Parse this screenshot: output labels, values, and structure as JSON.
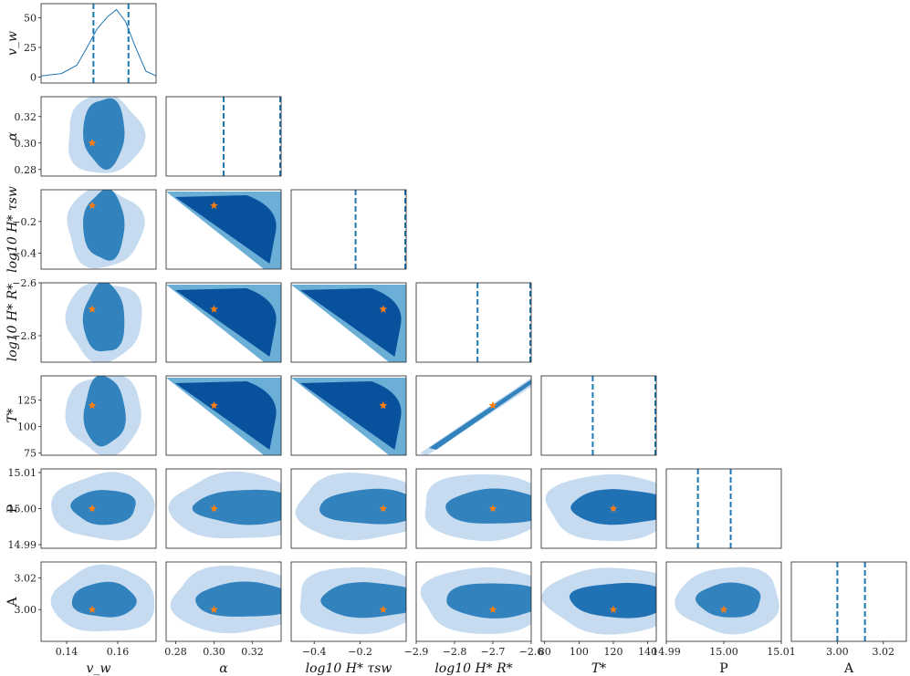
{
  "chart_data": {
    "type": "corner",
    "params": [
      {
        "key": "vw",
        "label": "v_w",
        "xlim": [
          0.13,
          0.175
        ],
        "ticks": [
          0.14,
          0.16
        ],
        "tick_labels": [
          "0.14",
          "0.16"
        ],
        "truth": 0.15,
        "quantiles": [
          0.1505,
          0.1642
        ],
        "hist": {
          "x": [
            0.13,
            0.138,
            0.144,
            0.148,
            0.152,
            0.156,
            0.1595,
            0.163,
            0.167,
            0.171,
            0.175
          ],
          "y": [
            1,
            3,
            10,
            25,
            41,
            51,
            57,
            47,
            25,
            5,
            1
          ]
        },
        "hist_ylim": [
          -5,
          62
        ],
        "hist_yticks": [
          0,
          25,
          50
        ],
        "hist_ytick_labels": [
          "0",
          "25",
          "50"
        ]
      },
      {
        "key": "alpha",
        "label": "α",
        "xlim": [
          0.275,
          0.335
        ],
        "ticks": [
          0.28,
          0.3,
          0.32
        ],
        "tick_labels": [
          "0.28",
          "0.30",
          "0.32"
        ],
        "truth": 0.3,
        "quantiles": [
          0.305,
          0.335
        ]
      },
      {
        "key": "tau",
        "label": "log10 H* τsw",
        "xlim": [
          -0.5,
          0.0
        ],
        "ticks": [
          -0.4,
          -0.2
        ],
        "tick_labels": [
          "−0.4",
          "−0.2"
        ],
        "truth": -0.1,
        "quantiles": [
          -0.22,
          0.0
        ]
      },
      {
        "key": "R",
        "label": "log10 H* R*",
        "xlim": [
          -2.9,
          -2.6
        ],
        "ticks": [
          -2.9,
          -2.8,
          -2.7,
          -2.6
        ],
        "tick_labels": [
          "−2.9",
          "−2.8",
          "−2.7",
          "−2.6"
        ],
        "truth": -2.7,
        "quantiles": [
          -2.74,
          -2.6
        ]
      },
      {
        "key": "T",
        "label": "T*",
        "xlim": [
          78,
          145
        ],
        "ticks": [
          80,
          100,
          120,
          140
        ],
        "tick_labels": [
          "80",
          "100",
          "120",
          "140"
        ],
        "truth": 120,
        "quantiles": [
          108,
          145
        ]
      },
      {
        "key": "P",
        "label": "P",
        "xlim": [
          14.99,
          15.01
        ],
        "ticks": [
          14.99,
          15.0,
          15.01
        ],
        "tick_labels": [
          "14.99",
          "15.00",
          "15.01"
        ],
        "truth": 15.0,
        "quantiles": [
          14.9955,
          15.0012
        ]
      },
      {
        "key": "A",
        "label": "A",
        "xlim": [
          2.98,
          3.03
        ],
        "ticks": [
          3.0,
          3.02
        ],
        "tick_labels": [
          "3.00",
          "3.02"
        ],
        "truth": 3.0,
        "quantiles": [
          3.0,
          3.012
        ]
      }
    ],
    "row_ticks": {
      "alpha": {
        "ylim": [
          0.275,
          0.335
        ],
        "ticks": [
          0.28,
          0.3,
          0.32
        ],
        "labels": [
          "0.28",
          "0.30",
          "0.32"
        ]
      },
      "tau": {
        "ylim": [
          -0.5,
          0.0
        ],
        "ticks": [
          -0.4,
          -0.2
        ],
        "labels": [
          "−0.4",
          "−0.2"
        ]
      },
      "R": {
        "ylim": [
          -2.9,
          -2.6
        ],
        "ticks": [
          -2.8,
          -2.6
        ],
        "labels": [
          "−2.8",
          "−2.6"
        ]
      },
      "T": {
        "ylim": [
          73,
          148
        ],
        "ticks": [
          75,
          100,
          125
        ],
        "labels": [
          "75",
          "100",
          "125"
        ]
      },
      "P": {
        "ylim": [
          14.989,
          15.011
        ],
        "ticks": [
          14.99,
          15.0,
          15.01
        ],
        "labels": [
          "14.99",
          "15.00",
          "15.01"
        ]
      },
      "A": {
        "ylim": [
          2.98,
          3.03
        ],
        "ticks": [
          3.0,
          3.02
        ],
        "labels": [
          "3.00",
          "3.02"
        ]
      }
    },
    "truth_marker": "star",
    "colors": {
      "outer": "#c6dbef",
      "mid": "#6baed6",
      "inner": "#3182bd",
      "deep": "#08519c",
      "line": "#1f77b4",
      "truth": "#ff7f0e"
    }
  }
}
